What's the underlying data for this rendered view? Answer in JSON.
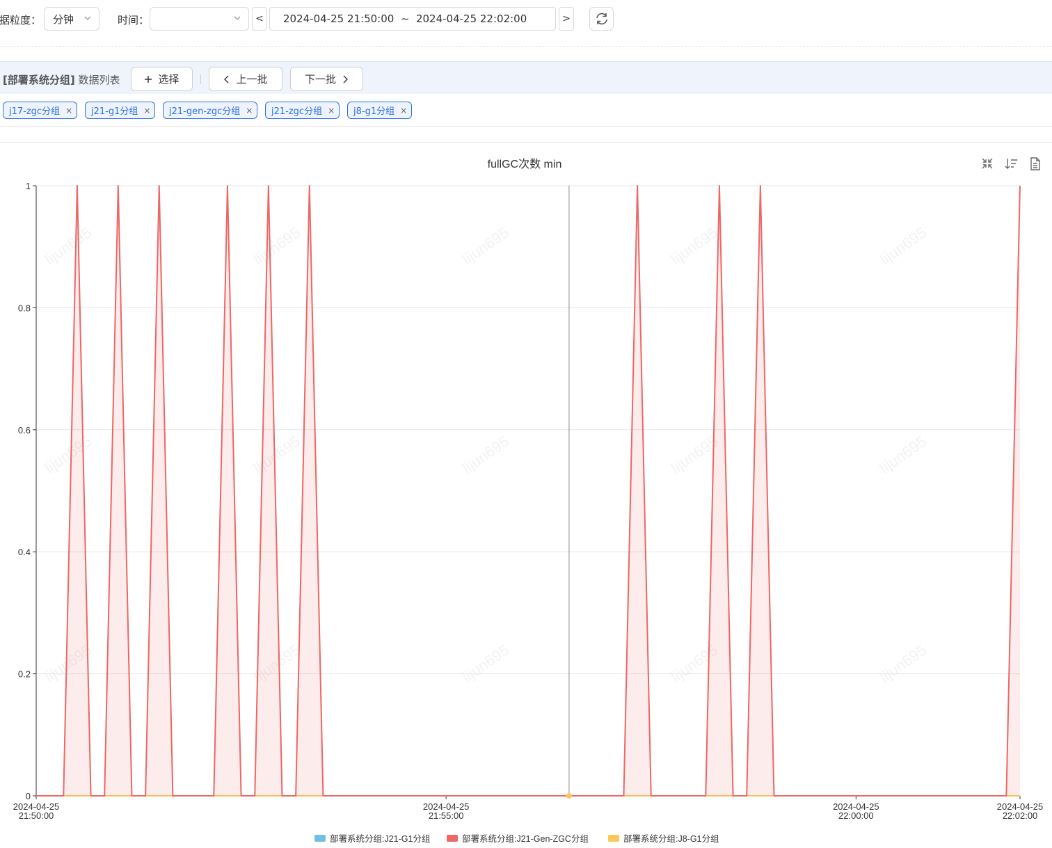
{
  "toolbar": {
    "granularity_label": "据粒度：",
    "granularity_value": "分钟",
    "time_label": "时间：",
    "time_select_value": "",
    "prev_label": "<",
    "next_label": ">",
    "range_text": "2024-04-25 21:50:00  ~  2024-04-25 22:02:00"
  },
  "databar": {
    "group": "[部署系统分组]",
    "list_label": "数据列表",
    "select_label": "选择",
    "prev_batch_label": "上一批",
    "next_batch_label": "下一批"
  },
  "tags": [
    "j17-zgc分组",
    "j21-g1分组",
    "j21-gen-zgc分组",
    "j21-zgc分组",
    "j8-g1分组"
  ],
  "tag_close": "×",
  "chart_data": {
    "type": "area",
    "title": "fullGC次数 min",
    "x": [
      "21:50:00",
      "21:50:10",
      "21:50:20",
      "21:50:30",
      "21:50:40",
      "21:50:50",
      "21:51:00",
      "21:51:10",
      "21:51:20",
      "21:51:30",
      "21:51:40",
      "21:51:50",
      "21:52:00",
      "21:52:10",
      "21:52:20",
      "21:52:30",
      "21:52:40",
      "21:52:50",
      "21:53:00",
      "21:53:10",
      "21:53:20",
      "21:53:30",
      "21:53:40",
      "21:53:50",
      "21:54:00",
      "21:54:10",
      "21:54:20",
      "21:54:30",
      "21:54:40",
      "21:54:50",
      "21:55:00",
      "21:55:10",
      "21:55:20",
      "21:55:30",
      "21:55:40",
      "21:55:50",
      "21:56:00",
      "21:56:10",
      "21:56:20",
      "21:56:30",
      "21:56:40",
      "21:56:50",
      "21:57:00",
      "21:57:10",
      "21:57:20",
      "21:57:30",
      "21:57:40",
      "21:57:50",
      "21:58:00",
      "21:58:10",
      "21:58:20",
      "21:58:30",
      "21:58:40",
      "21:58:50",
      "21:59:00",
      "21:59:10",
      "21:59:20",
      "21:59:30",
      "21:59:40",
      "21:59:50",
      "22:00:00",
      "22:00:10",
      "22:00:20",
      "22:00:30",
      "22:00:40",
      "22:00:50",
      "22:01:00",
      "22:01:10",
      "22:01:20",
      "22:01:30",
      "22:01:40",
      "22:01:50",
      "22:02:00"
    ],
    "series": [
      {
        "name": "部署系统分组:J21-G1分组",
        "color": "#73c0de",
        "values": [
          0,
          0,
          0,
          0,
          0,
          0,
          0,
          0,
          0,
          0,
          0,
          0,
          0,
          0,
          0,
          0,
          0,
          0,
          0,
          0,
          0,
          0,
          0,
          0,
          0,
          0,
          0,
          0,
          0,
          0,
          0,
          0,
          0,
          0,
          0,
          0,
          0,
          0,
          0,
          0,
          0,
          0,
          0,
          0,
          0,
          0,
          0,
          0,
          0,
          0,
          0,
          0,
          0,
          0,
          0,
          0,
          0,
          0,
          0,
          0,
          0,
          0,
          0,
          0,
          0,
          0,
          0,
          0,
          0,
          0,
          0,
          0,
          0
        ]
      },
      {
        "name": "部署系统分组:J21-Gen-ZGC分组",
        "color": "#ee6666",
        "values": [
          0,
          0,
          0,
          1,
          0,
          0,
          1,
          0,
          0,
          1,
          0,
          0,
          0,
          0,
          1,
          0,
          0,
          1,
          0,
          0,
          1,
          0,
          0,
          0,
          0,
          0,
          0,
          0,
          0,
          0,
          0,
          0,
          0,
          0,
          0,
          0,
          0,
          0,
          0,
          0,
          0,
          0,
          0,
          0,
          1,
          0,
          0,
          0,
          0,
          0,
          1,
          0,
          0,
          1,
          0,
          0,
          0,
          0,
          0,
          0,
          0,
          0,
          0,
          0,
          0,
          0,
          0,
          0,
          0,
          0,
          0,
          0,
          1
        ]
      },
      {
        "name": "部署系统分组:J8-G1分组",
        "color": "#fac858",
        "values": [
          0,
          0,
          0,
          0,
          0,
          0,
          0,
          0,
          0,
          0,
          0,
          0,
          0,
          0,
          0,
          0,
          0,
          0,
          0,
          0,
          0,
          0,
          0,
          0,
          0,
          0,
          0,
          0,
          0,
          0,
          0,
          0,
          0,
          0,
          0,
          0,
          0,
          0,
          0,
          0,
          0,
          0,
          0,
          0,
          0,
          0,
          0,
          0,
          0,
          0,
          0,
          0,
          0,
          0,
          0,
          0,
          0,
          0,
          0,
          0,
          0,
          0,
          0,
          0,
          0,
          0,
          0,
          0,
          0,
          0,
          0,
          0,
          0
        ]
      }
    ],
    "y_ticks": [
      "0",
      "0.2",
      "0.4",
      "0.6",
      "0.8",
      "1"
    ],
    "ylim": [
      0,
      1
    ],
    "x_tick_labels": [
      {
        "date": "2024-04-25",
        "time": "21:50:00"
      },
      {
        "date": "2024-04-25",
        "time": "21:55:00"
      },
      {
        "date": "2024-04-25",
        "time": "22:00:00"
      },
      {
        "date": "2024-04-25",
        "time": "22:02:00"
      }
    ],
    "x_tick_values": [
      "21:50:00",
      "21:55:00",
      "22:00:00",
      "22:02:00"
    ],
    "cursor_x": "21:56:30",
    "grid": true,
    "legend_position": "bottom",
    "watermark": "lijun695"
  }
}
